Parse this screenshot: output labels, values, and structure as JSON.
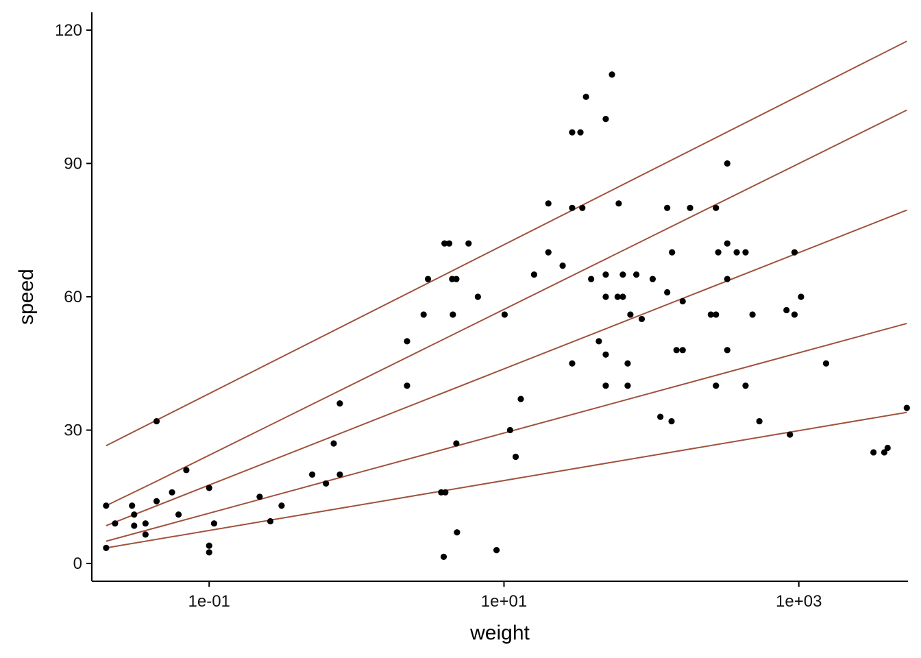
{
  "chart_data": {
    "type": "scatter",
    "title": "",
    "xlabel": "weight",
    "ylabel": "speed",
    "x_scale": "log10",
    "xlim": [
      0.016,
      5500
    ],
    "ylim": [
      -4,
      124
    ],
    "x_ticks": [
      {
        "value": 0.1,
        "label": "1e-01"
      },
      {
        "value": 10,
        "label": "1e+01"
      },
      {
        "value": 1000,
        "label": "1e+03"
      }
    ],
    "y_ticks": [
      {
        "value": 0,
        "label": "0"
      },
      {
        "value": 30,
        "label": "30"
      },
      {
        "value": 60,
        "label": "60"
      },
      {
        "value": 90,
        "label": "90"
      },
      {
        "value": 120,
        "label": "120"
      }
    ],
    "grid": false,
    "legend": "none",
    "line_color": "#a0523d",
    "point_color": "#000000",
    "points": [
      {
        "x": 0.02,
        "y": 13
      },
      {
        "x": 0.02,
        "y": 3.5
      },
      {
        "x": 0.023,
        "y": 9
      },
      {
        "x": 0.03,
        "y": 13
      },
      {
        "x": 0.031,
        "y": 11
      },
      {
        "x": 0.031,
        "y": 8.5
      },
      {
        "x": 0.037,
        "y": 9
      },
      {
        "x": 0.037,
        "y": 6.5
      },
      {
        "x": 0.044,
        "y": 14
      },
      {
        "x": 0.044,
        "y": 32
      },
      {
        "x": 0.056,
        "y": 16
      },
      {
        "x": 0.062,
        "y": 11
      },
      {
        "x": 0.07,
        "y": 21
      },
      {
        "x": 0.1,
        "y": 17
      },
      {
        "x": 0.1,
        "y": 4
      },
      {
        "x": 0.1,
        "y": 2.5
      },
      {
        "x": 0.108,
        "y": 9
      },
      {
        "x": 0.22,
        "y": 15
      },
      {
        "x": 0.26,
        "y": 9.5
      },
      {
        "x": 0.31,
        "y": 13
      },
      {
        "x": 0.5,
        "y": 20
      },
      {
        "x": 0.62,
        "y": 18
      },
      {
        "x": 0.7,
        "y": 27
      },
      {
        "x": 0.77,
        "y": 36
      },
      {
        "x": 0.77,
        "y": 20
      },
      {
        "x": 2.2,
        "y": 50
      },
      {
        "x": 2.2,
        "y": 40
      },
      {
        "x": 2.85,
        "y": 56
      },
      {
        "x": 3.05,
        "y": 64
      },
      {
        "x": 3.75,
        "y": 16
      },
      {
        "x": 4.5,
        "y": 56
      },
      {
        "x": 3.95,
        "y": 72
      },
      {
        "x": 4.25,
        "y": 72
      },
      {
        "x": 4.0,
        "y": 16
      },
      {
        "x": 3.9,
        "y": 1.5
      },
      {
        "x": 4.45,
        "y": 64
      },
      {
        "x": 4.75,
        "y": 64
      },
      {
        "x": 4.75,
        "y": 27
      },
      {
        "x": 4.8,
        "y": 7
      },
      {
        "x": 5.75,
        "y": 72
      },
      {
        "x": 6.65,
        "y": 60
      },
      {
        "x": 8.9,
        "y": 3
      },
      {
        "x": 10.1,
        "y": 56
      },
      {
        "x": 11,
        "y": 30
      },
      {
        "x": 12,
        "y": 24
      },
      {
        "x": 13,
        "y": 37
      },
      {
        "x": 16,
        "y": 65
      },
      {
        "x": 20,
        "y": 81
      },
      {
        "x": 20,
        "y": 70
      },
      {
        "x": 25,
        "y": 67
      },
      {
        "x": 29,
        "y": 97
      },
      {
        "x": 33,
        "y": 97
      },
      {
        "x": 29,
        "y": 80
      },
      {
        "x": 34,
        "y": 80
      },
      {
        "x": 29,
        "y": 45
      },
      {
        "x": 36,
        "y": 105
      },
      {
        "x": 39,
        "y": 64
      },
      {
        "x": 44,
        "y": 50
      },
      {
        "x": 49,
        "y": 100
      },
      {
        "x": 49,
        "y": 65
      },
      {
        "x": 49,
        "y": 60
      },
      {
        "x": 49,
        "y": 47
      },
      {
        "x": 49,
        "y": 40
      },
      {
        "x": 54,
        "y": 110
      },
      {
        "x": 60,
        "y": 81
      },
      {
        "x": 59,
        "y": 60
      },
      {
        "x": 64,
        "y": 60
      },
      {
        "x": 64,
        "y": 65
      },
      {
        "x": 69,
        "y": 45
      },
      {
        "x": 69,
        "y": 40
      },
      {
        "x": 72,
        "y": 56
      },
      {
        "x": 79,
        "y": 65
      },
      {
        "x": 86,
        "y": 55
      },
      {
        "x": 102,
        "y": 64
      },
      {
        "x": 115,
        "y": 33
      },
      {
        "x": 128,
        "y": 80
      },
      {
        "x": 128,
        "y": 61
      },
      {
        "x": 138,
        "y": 70
      },
      {
        "x": 137,
        "y": 32
      },
      {
        "x": 148,
        "y": 48
      },
      {
        "x": 163,
        "y": 59
      },
      {
        "x": 163,
        "y": 48
      },
      {
        "x": 183,
        "y": 80
      },
      {
        "x": 253,
        "y": 56
      },
      {
        "x": 274,
        "y": 56
      },
      {
        "x": 274,
        "y": 80
      },
      {
        "x": 284,
        "y": 70
      },
      {
        "x": 274,
        "y": 40
      },
      {
        "x": 327,
        "y": 72
      },
      {
        "x": 327,
        "y": 90
      },
      {
        "x": 327,
        "y": 64
      },
      {
        "x": 327,
        "y": 48
      },
      {
        "x": 379,
        "y": 70
      },
      {
        "x": 435,
        "y": 70
      },
      {
        "x": 435,
        "y": 40
      },
      {
        "x": 485,
        "y": 56
      },
      {
        "x": 540,
        "y": 32
      },
      {
        "x": 825,
        "y": 57
      },
      {
        "x": 870,
        "y": 29
      },
      {
        "x": 935,
        "y": 70
      },
      {
        "x": 935,
        "y": 56
      },
      {
        "x": 1035,
        "y": 60
      },
      {
        "x": 1530,
        "y": 45
      },
      {
        "x": 3210,
        "y": 25
      },
      {
        "x": 3800,
        "y": 25
      },
      {
        "x": 4000,
        "y": 26
      },
      {
        "x": 5400,
        "y": 35
      }
    ],
    "lines": [
      {
        "x": [
          0.02,
          5400
        ],
        "y": [
          26.5,
          117.5
        ]
      },
      {
        "x": [
          0.02,
          0.044,
          5400
        ],
        "y": [
          13,
          18.5,
          102
        ]
      },
      {
        "x": [
          0.02,
          5400
        ],
        "y": [
          8.5,
          79.5
        ]
      },
      {
        "x": [
          0.02,
          5400
        ],
        "y": [
          5,
          54
        ]
      },
      {
        "x": [
          0.02,
          5400
        ],
        "y": [
          3.5,
          34
        ]
      }
    ]
  }
}
